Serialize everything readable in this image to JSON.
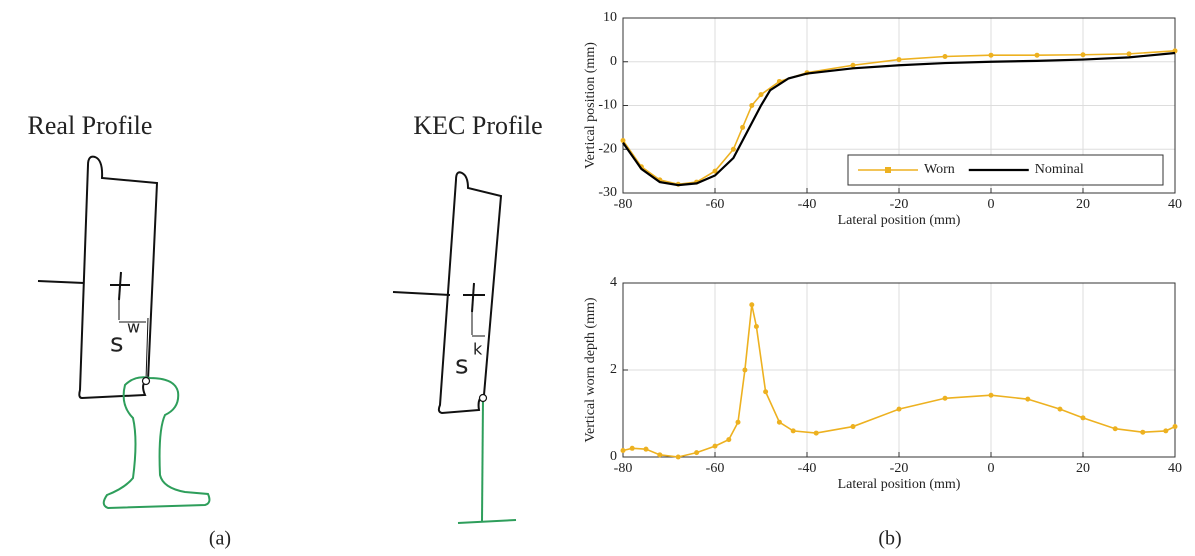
{
  "diagram": {
    "left_title": "Real Profile",
    "right_title": "KEC Profile",
    "left_symbol": {
      "base": "s",
      "sup": "w"
    },
    "right_symbol": {
      "base": "s",
      "sup": "k"
    },
    "left_caption": "(a)",
    "right_caption": "(b)"
  },
  "chart_data": [
    {
      "type": "line",
      "xlabel": "Lateral position (mm)",
      "ylabel": "Vertical position (mm)",
      "xlim": [
        -80,
        40
      ],
      "ylim": [
        -30,
        10
      ],
      "xticks": [
        -80,
        -60,
        -40,
        -20,
        0,
        20,
        40
      ],
      "yticks": [
        -30,
        -20,
        -10,
        0,
        10
      ],
      "grid": true,
      "legend": "lower right",
      "series": [
        {
          "name": "Worn",
          "color": "#edb120",
          "marker": true,
          "x": [
            -80,
            -76,
            -72,
            -68,
            -64,
            -60,
            -56,
            -54,
            -52,
            -50,
            -46,
            -40,
            -30,
            -20,
            -10,
            0,
            10,
            20,
            30,
            40
          ],
          "values": [
            -18,
            -24,
            -27,
            -28,
            -27.5,
            -25,
            -20,
            -15,
            -10,
            -7.5,
            -4.5,
            -2.5,
            -0.8,
            0.5,
            1.2,
            1.5,
            1.5,
            1.6,
            1.8,
            2.5
          ]
        },
        {
          "name": "Nominal",
          "color": "#000000",
          "marker": false,
          "x": [
            -80,
            -76,
            -72,
            -68,
            -64,
            -60,
            -56,
            -54,
            -52,
            -50,
            -48,
            -44,
            -40,
            -30,
            -20,
            -10,
            0,
            10,
            20,
            30,
            40
          ],
          "values": [
            -18.5,
            -24.5,
            -27.5,
            -28.2,
            -27.8,
            -26,
            -22,
            -18,
            -14,
            -10,
            -6.5,
            -3.8,
            -2.7,
            -1.5,
            -0.8,
            -0.3,
            0,
            0.2,
            0.5,
            1,
            2
          ]
        }
      ]
    },
    {
      "type": "line",
      "xlabel": "Lateral position (mm)",
      "ylabel": "Vertical worn depth (mm)",
      "xlim": [
        -80,
        40
      ],
      "ylim": [
        0,
        4
      ],
      "xticks": [
        -80,
        -60,
        -40,
        -20,
        0,
        20,
        40
      ],
      "yticks": [
        0,
        2,
        4
      ],
      "grid": true,
      "series": [
        {
          "name": "Worn",
          "color": "#edb120",
          "marker": true,
          "legend": false,
          "x": [
            -80,
            -78,
            -75,
            -72,
            -68,
            -64,
            -60,
            -57,
            -55,
            -53.5,
            -52,
            -51,
            -49,
            -46,
            -43,
            -38,
            -30,
            -20,
            -10,
            0,
            8,
            15,
            20,
            27,
            33,
            38,
            40
          ],
          "values": [
            0.15,
            0.2,
            0.18,
            0.05,
            0,
            0.1,
            0.25,
            0.4,
            0.8,
            2,
            3.5,
            3,
            1.5,
            0.8,
            0.6,
            0.55,
            0.7,
            1.1,
            1.35,
            1.42,
            1.33,
            1.1,
            0.9,
            0.65,
            0.57,
            0.6,
            0.7
          ]
        }
      ]
    }
  ]
}
